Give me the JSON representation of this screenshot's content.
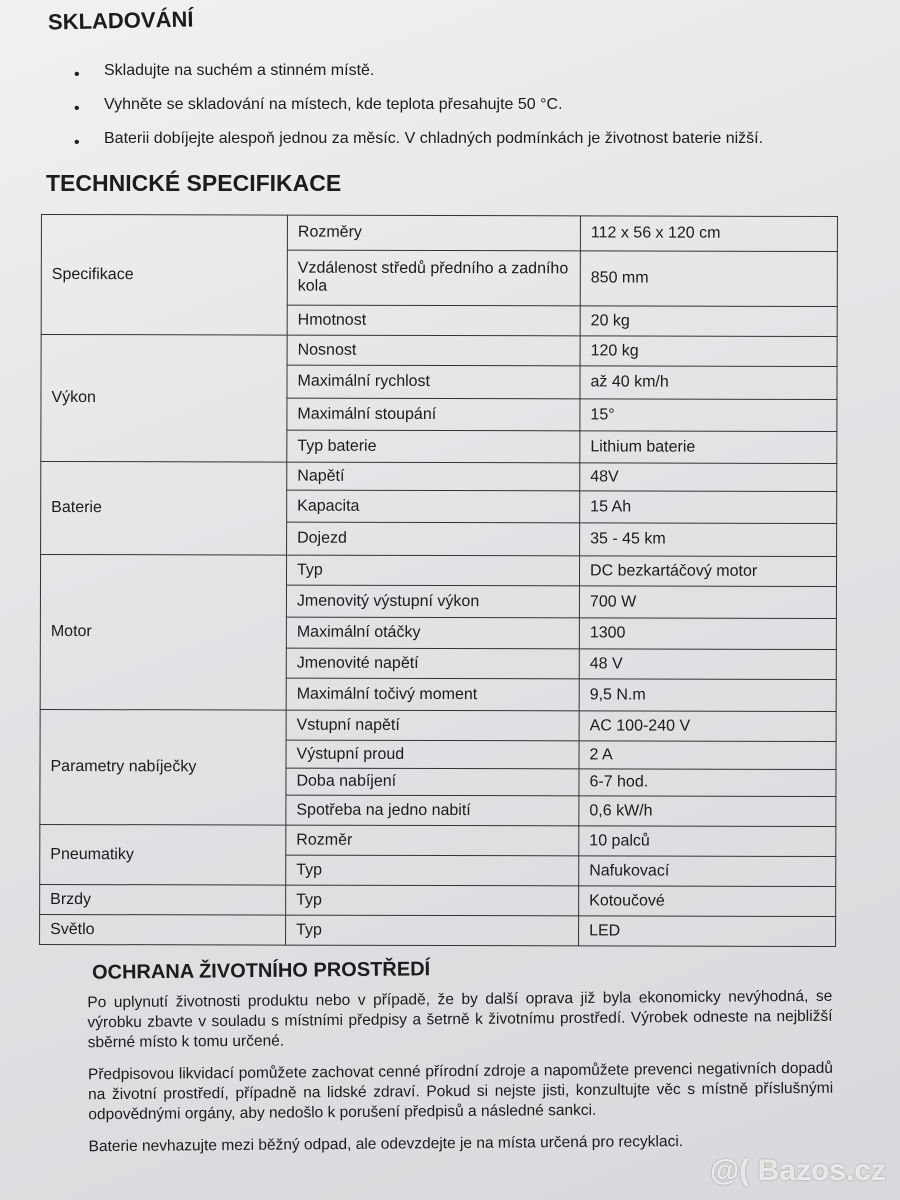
{
  "storage": {
    "title": "SKLADOVÁNÍ",
    "items": [
      "Skladujte na suchém a stinném místě.",
      "Vyhněte se skladování na místech, kde teplota přesahujte 50 °C.",
      "Baterii dobíjejte alespoň jednou za měsíc. V chladných podmínkách je životnost baterie nižší."
    ]
  },
  "tech": {
    "title": "TECHNICKÉ SPECIFIKACE",
    "groups": [
      {
        "name": "Specifikace",
        "rows": [
          [
            "Rozměry",
            "112 x 56 x 120 cm"
          ],
          [
            "Vzdálenost středů předního a zadního kola",
            "850 mm"
          ],
          [
            "Hmotnost",
            "20 kg"
          ]
        ]
      },
      {
        "name": "Výkon",
        "rows": [
          [
            "Nosnost",
            "120 kg"
          ],
          [
            "Maximální rychlost",
            "až 40 km/h"
          ],
          [
            "Maximální stoupání",
            "15°"
          ],
          [
            "Typ baterie",
            "Lithium baterie"
          ]
        ]
      },
      {
        "name": "Baterie",
        "rows": [
          [
            "Napětí",
            "48V"
          ],
          [
            "Kapacita",
            "15 Ah"
          ],
          [
            "Dojezd",
            "35 - 45 km"
          ]
        ]
      },
      {
        "name": "Motor",
        "rows": [
          [
            "Typ",
            "DC bezkartáčový motor"
          ],
          [
            "Jmenovitý výstupní výkon",
            "700 W"
          ],
          [
            "Maximální otáčky",
            "1300"
          ],
          [
            "Jmenovité napětí",
            "48 V"
          ],
          [
            "Maximální točivý moment",
            "9,5 N.m"
          ]
        ]
      },
      {
        "name": "Parametry nabíječky",
        "rows": [
          [
            "Vstupní napětí",
            "AC 100-240 V"
          ],
          [
            "Výstupní proud",
            "2 A"
          ],
          [
            "Doba nabíjení",
            "6-7 hod."
          ],
          [
            "Spotřeba na jedno nabití",
            "0,6 kW/h"
          ]
        ]
      },
      {
        "name": "Pneumatiky",
        "rows": [
          [
            "Rozměr",
            "10 palců"
          ],
          [
            "Typ",
            "Nafukovací"
          ]
        ]
      },
      {
        "name": "Brzdy",
        "rows": [
          [
            "Typ",
            "Kotoučové"
          ]
        ]
      },
      {
        "name": "Světlo",
        "rows": [
          [
            "Typ",
            "LED"
          ]
        ]
      }
    ]
  },
  "environment": {
    "title": "OCHRANA ŽIVOTNÍHO PROSTŘEDÍ",
    "paragraphs": [
      "Po uplynutí životnosti produktu nebo v případě, že by další oprava již byla ekonomicky nevýhodná, se výrobku zbavte v souladu s místními předpisy a šetrně k životnímu prostředí. Výrobek odneste na nejbližší sběrné místo k tomu určené.",
      "Předpisovou likvidací pomůžete zachovat cenné přírodní zdroje a napomůžete prevenci negativních dopadů na životní prostředí, případně na lidské zdraví. Pokud si nejste jisti, konzultujte věc s místně příslušnými odpovědnými orgány, aby nedošlo k porušení předpisů a následné sankci.",
      "Baterie nevhazujte mezi běžný odpad, ale odevzdejte je na místa určená pro recyklaci."
    ]
  },
  "watermark": "@( Bazos.cz"
}
